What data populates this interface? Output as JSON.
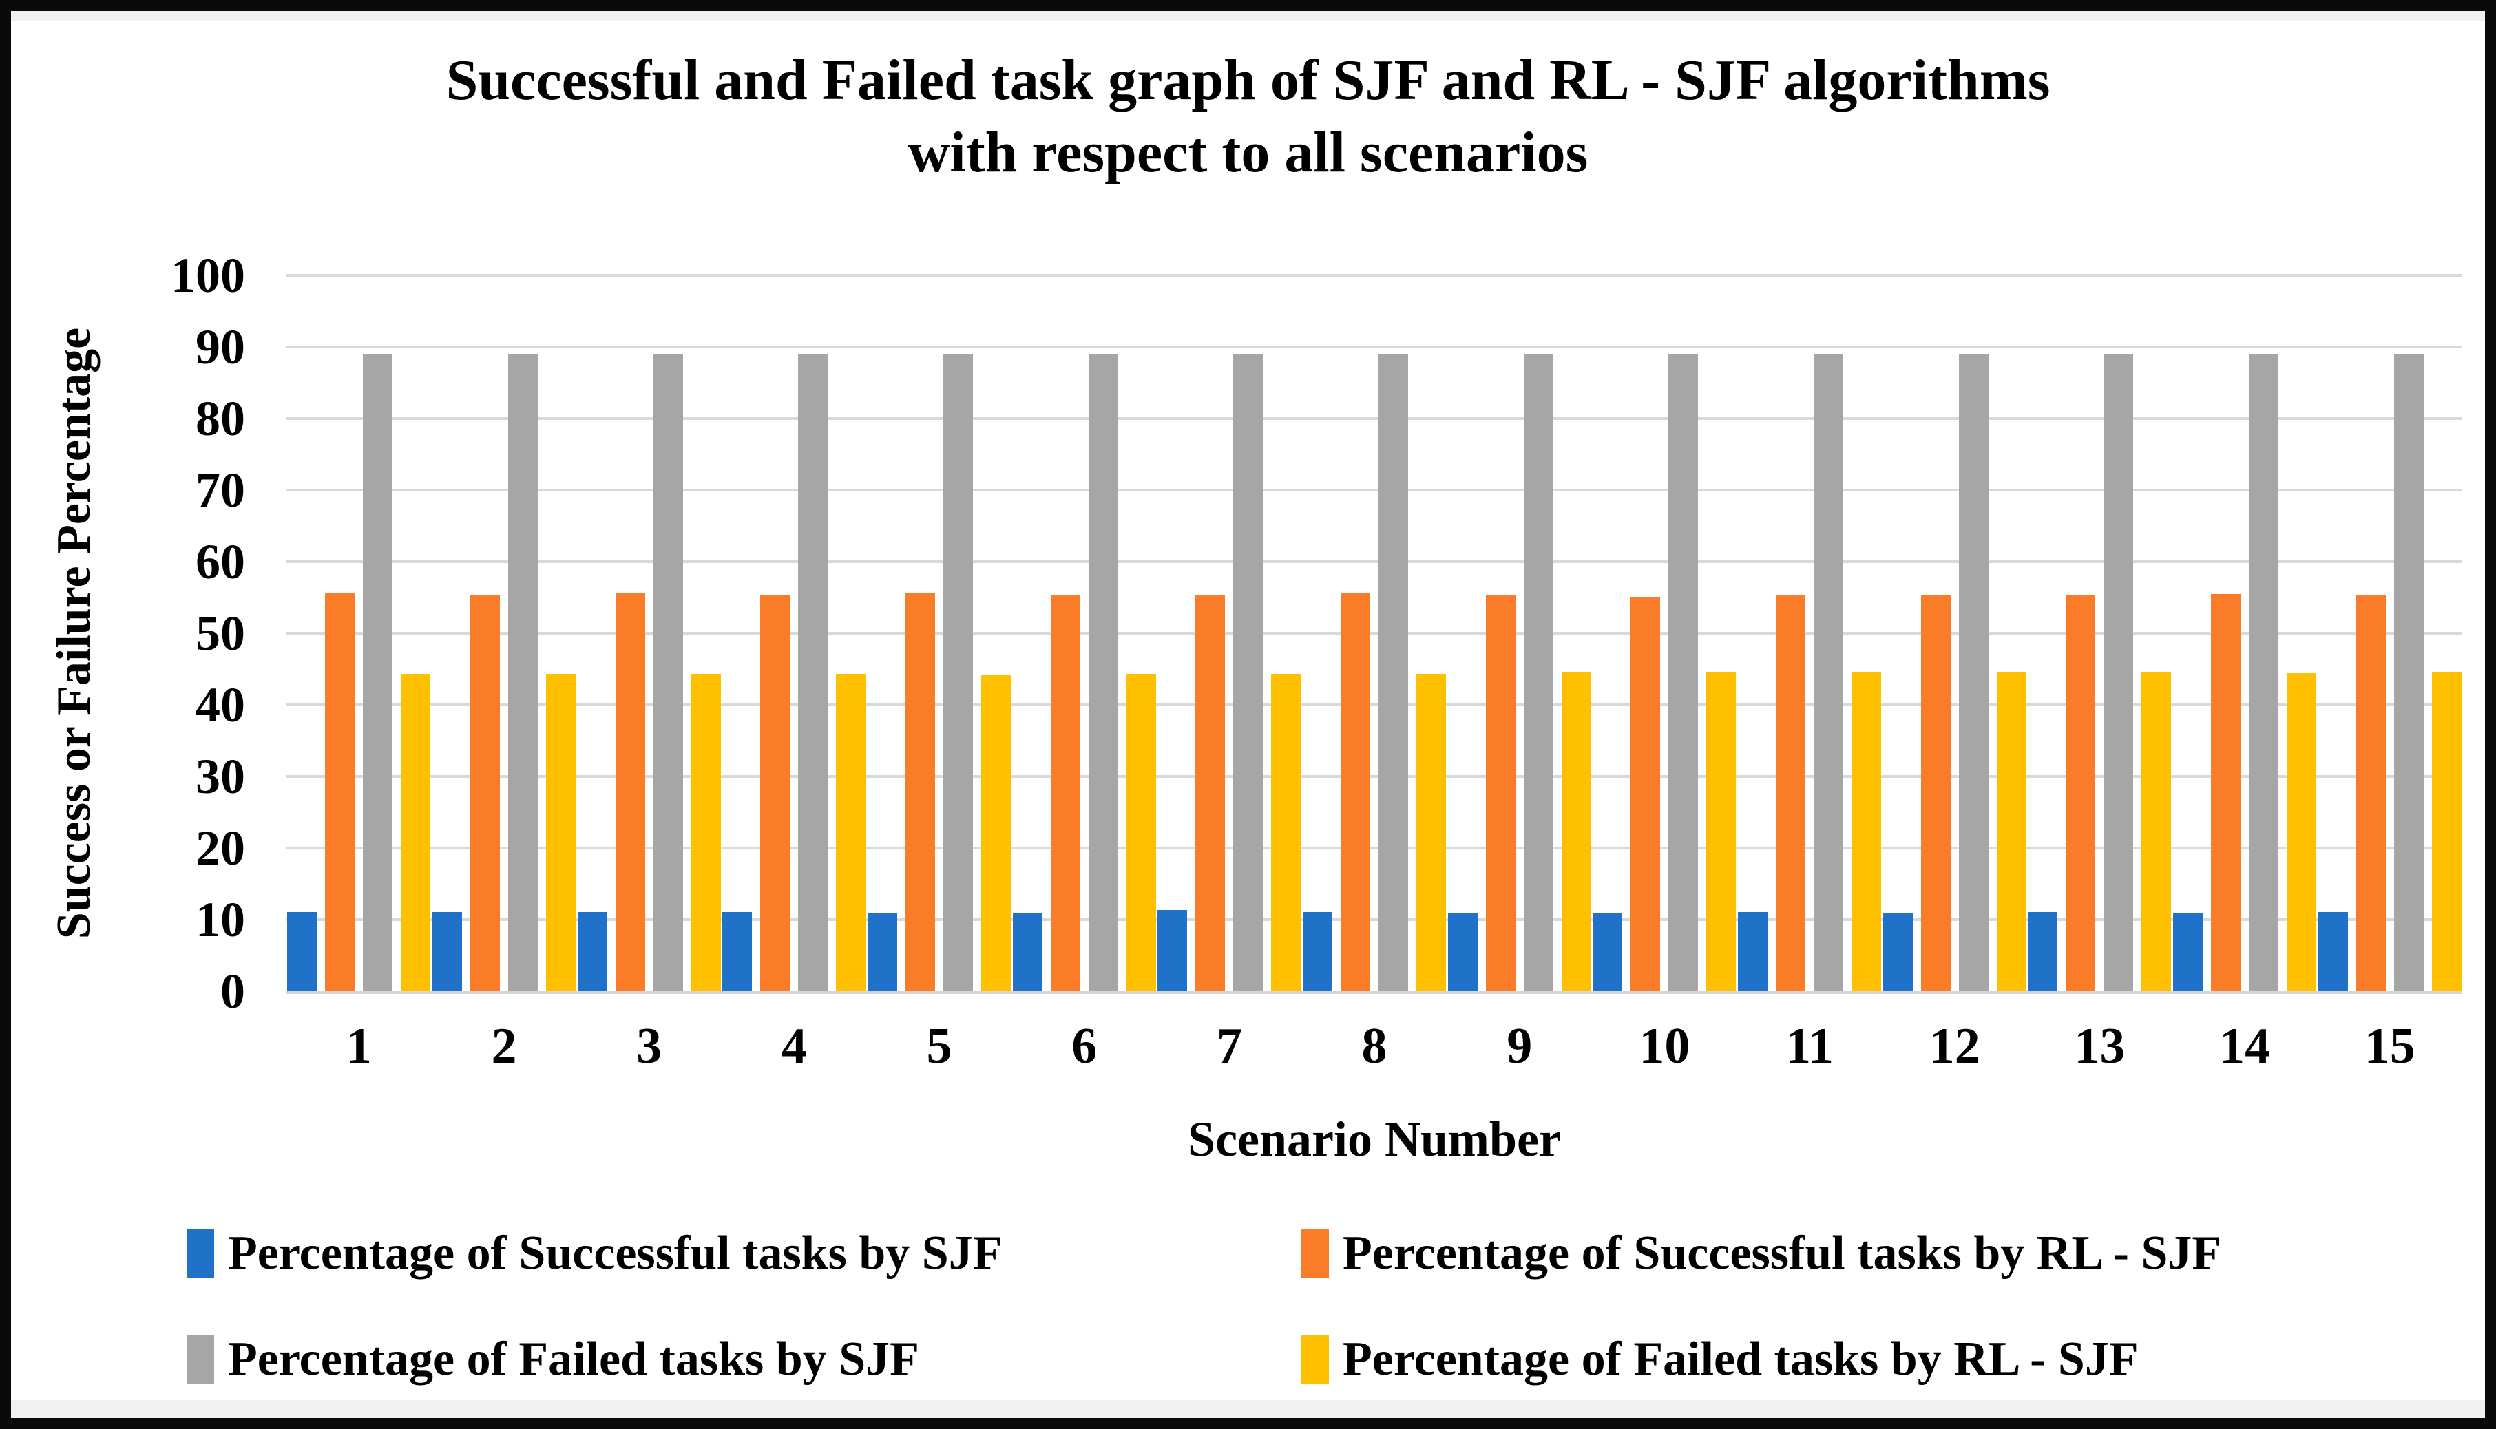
{
  "figure": {
    "title_line1": "Successful and Failed task graph of SJF and RL - SJF algorithms",
    "title_line2": "with respect to all scenarios"
  },
  "chart_data": {
    "type": "bar",
    "title": "Successful and Failed task graph of SJF and RL - SJF algorithms with respect to all scenarios",
    "xlabel": "Scenario Number",
    "ylabel": "Success or Failure Percentage",
    "ylim": [
      0,
      100
    ],
    "ytick_step": 10,
    "yticks": [
      0,
      10,
      20,
      30,
      40,
      50,
      60,
      70,
      80,
      90,
      100
    ],
    "grid": true,
    "legend_position": "bottom",
    "categories": [
      "1",
      "2",
      "3",
      "4",
      "5",
      "6",
      "7",
      "8",
      "9",
      "10",
      "11",
      "12",
      "13",
      "14",
      "15"
    ],
    "series": [
      {
        "key": "sjf-success",
        "name": "Percentage of Successful tasks by SJF",
        "color": "#1f72c8",
        "values": [
          11.1,
          11.1,
          11.1,
          11.1,
          11.0,
          11.0,
          11.3,
          11.1,
          10.9,
          11.0,
          11.1,
          11.0,
          11.1,
          11.0,
          11.1
        ]
      },
      {
        "key": "rlsjf-success",
        "name": "Percentage of Successful tasks by RL - SJF",
        "color": "#fa7b28",
        "values": [
          55.7,
          55.4,
          55.7,
          55.4,
          55.6,
          55.4,
          55.3,
          55.7,
          55.3,
          55.0,
          55.4,
          55.3,
          55.4,
          55.5,
          55.4
        ]
      },
      {
        "key": "sjf-fail",
        "name": "Percentage of Failed tasks by SJF",
        "color": "#a6a6a6",
        "values": [
          88.9,
          88.9,
          88.9,
          88.9,
          89.0,
          89.0,
          88.9,
          89.0,
          89.0,
          88.9,
          88.9,
          88.9,
          88.9,
          88.9,
          88.9
        ]
      },
      {
        "key": "rlsjf-fail",
        "name": "Percentage of Failed tasks by RL - SJF",
        "color": "#ffc000",
        "values": [
          44.3,
          44.3,
          44.3,
          44.3,
          44.1,
          44.3,
          44.3,
          44.3,
          44.6,
          44.6,
          44.6,
          44.6,
          44.6,
          44.5,
          44.6
        ]
      }
    ],
    "colors": {
      "gridline": "#d9d9d9",
      "axis_line": "#d6d6d6",
      "text": "#000000",
      "frame": "#0a0a0a"
    }
  }
}
